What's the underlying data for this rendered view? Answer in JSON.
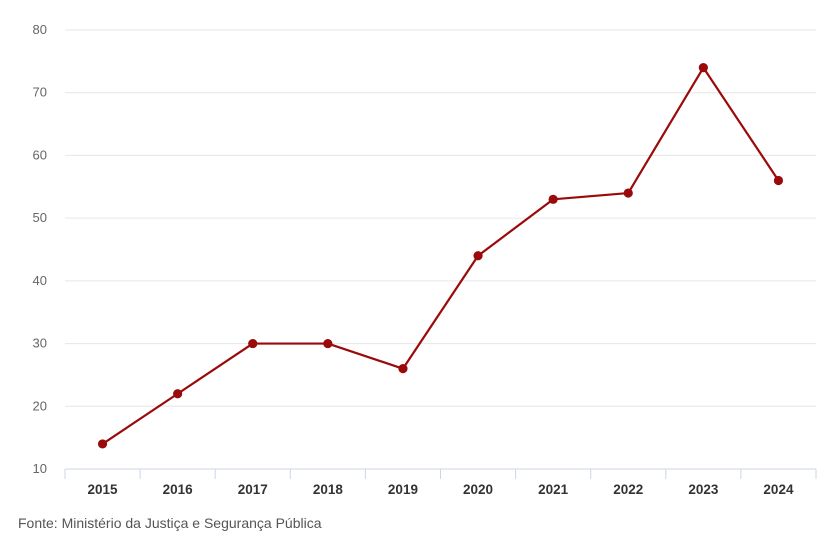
{
  "chart_data": {
    "type": "line",
    "title": "",
    "xlabel": "",
    "ylabel": "",
    "categories": [
      "2015",
      "2016",
      "2017",
      "2018",
      "2019",
      "2020",
      "2021",
      "2022",
      "2023",
      "2024"
    ],
    "series": [
      {
        "values": [
          14,
          22,
          30,
          30,
          26,
          44,
          53,
          54,
          74,
          56
        ],
        "color": "#9b0a0a"
      }
    ],
    "ylim": [
      10,
      80
    ],
    "yticks": [
      "10",
      "20",
      "30",
      "40",
      "50",
      "60",
      "70",
      "80"
    ],
    "grid": true,
    "legend": "none"
  },
  "source": "Fonte: Ministério da Justiça e Segurança Pública",
  "colors": {
    "line": "#9b0a0a",
    "grid": "#e6e6e6",
    "axis": "#ccd6eb"
  }
}
